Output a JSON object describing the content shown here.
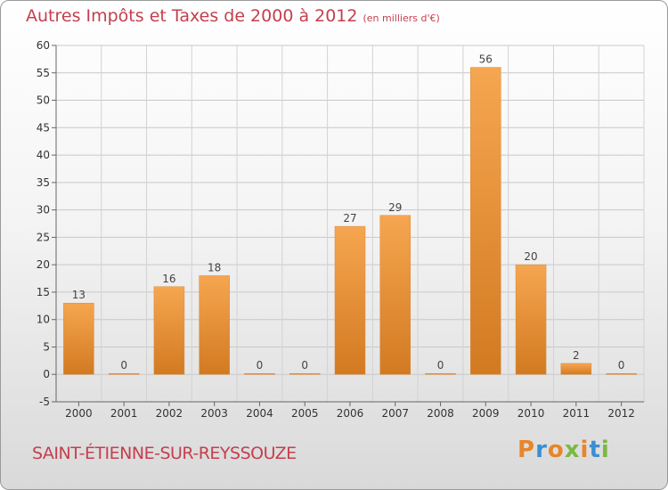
{
  "header": {
    "title": "Autres Impôts et Taxes de 2000 à 2012",
    "subtitle": "(en milliers d'€)"
  },
  "footer": {
    "commune": "SAINT-ÉTIENNE-SUR-REYSSOUZE",
    "logo_text": "Proxiti"
  },
  "colors": {
    "title": "#c43f4e",
    "bar_light": "#f6a650",
    "bar_dark": "#d27a22",
    "logo": [
      "#e8852a",
      "#3a8fd1",
      "#e8852a",
      "#7bb843",
      "#e8852a",
      "#3a8fd1",
      "#7bb843"
    ]
  },
  "chart_data": {
    "type": "bar",
    "categories": [
      "2000",
      "2001",
      "2002",
      "2003",
      "2004",
      "2005",
      "2006",
      "2007",
      "2008",
      "2009",
      "2010",
      "2011",
      "2012"
    ],
    "values": [
      13,
      0,
      16,
      18,
      0,
      0,
      27,
      29,
      0,
      56,
      20,
      2,
      0
    ],
    "data_labels": [
      "13",
      "0",
      "16",
      "18",
      "0",
      "0",
      "27",
      "29",
      "0",
      "56",
      "20",
      "2",
      "0"
    ],
    "yticks": [
      -5,
      0,
      5,
      10,
      15,
      20,
      25,
      30,
      35,
      40,
      45,
      50,
      55,
      60
    ],
    "ylim": [
      -5,
      60
    ],
    "grid": "horizontal",
    "title": "Autres Impôts et Taxes de 2000 à 2012",
    "xlabel": "",
    "ylabel": ""
  }
}
